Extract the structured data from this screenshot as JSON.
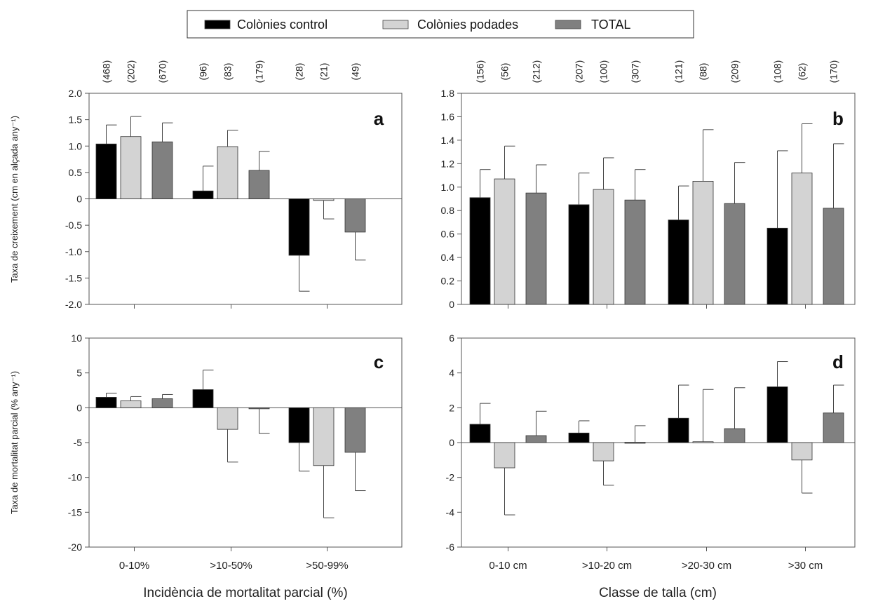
{
  "legend": {
    "items": [
      {
        "label": "Colònies control",
        "color": "#000000"
      },
      {
        "label": "Colònies podades",
        "color": "#d3d3d3"
      },
      {
        "label": "TOTAL",
        "color": "#808080"
      }
    ],
    "position": "top-center"
  },
  "colors": {
    "control": "#000000",
    "podades": "#d3d3d3",
    "total": "#808080",
    "axis": "#555555"
  },
  "chart_data": [
    {
      "panel": "a",
      "type": "bar",
      "ylabel": "Taxa de creixement (cm en alçada any⁻¹)",
      "xlabel": "",
      "ylim": [
        -2.0,
        2.0
      ],
      "yticks": [
        "2.0",
        "1.5",
        "1.0",
        "0.5",
        "0",
        "-0.5",
        "-1.0",
        "-1.5",
        "-2.0"
      ],
      "ytick_values": [
        2.0,
        1.5,
        1.0,
        0.5,
        0,
        -0.5,
        -1.0,
        -1.5,
        -2.0
      ],
      "categories": [
        "0-10%",
        ">10-50%",
        ">50-99%"
      ],
      "n_labels": [
        [
          "(468)",
          "(202)",
          "(670)"
        ],
        [
          "(96)",
          "(83)",
          "(179)"
        ],
        [
          "(28)",
          "(21)",
          "(49)"
        ]
      ],
      "series": [
        {
          "name": "Colònies control",
          "values": [
            1.04,
            0.15,
            -1.07
          ],
          "errors": [
            0.36,
            0.47,
            0.68
          ]
        },
        {
          "name": "Colònies podades",
          "values": [
            1.18,
            0.99,
            -0.03
          ],
          "errors": [
            0.38,
            0.31,
            0.35
          ]
        },
        {
          "name": "TOTAL",
          "values": [
            1.08,
            0.54,
            -0.63
          ],
          "errors": [
            0.36,
            0.36,
            0.53
          ]
        }
      ]
    },
    {
      "panel": "b",
      "type": "bar",
      "ylabel": "",
      "xlabel": "Classe de talla (cm)",
      "ylim": [
        0,
        1.8
      ],
      "yticks": [
        "1.8",
        "1.6",
        "1.4",
        "1.2",
        "1.0",
        "0.8",
        "0.6",
        "0.4",
        "0.2",
        "0"
      ],
      "ytick_values": [
        1.8,
        1.6,
        1.4,
        1.2,
        1.0,
        0.8,
        0.6,
        0.4,
        0.2,
        0
      ],
      "categories": [
        "0-10 cm",
        ">10-20 cm",
        ">20-30 cm",
        ">30 cm"
      ],
      "n_labels": [
        [
          "(156)",
          "(56)",
          "(212)"
        ],
        [
          "(207)",
          "(100)",
          "(307)"
        ],
        [
          "(121)",
          "(88)",
          "(209)"
        ],
        [
          "(108)",
          "(62)",
          "(170)"
        ]
      ],
      "series": [
        {
          "name": "Colònies control",
          "values": [
            0.91,
            0.85,
            0.72,
            0.65
          ],
          "errors": [
            0.24,
            0.27,
            0.29,
            0.66
          ]
        },
        {
          "name": "Colònies podades",
          "values": [
            1.07,
            0.98,
            1.05,
            1.12
          ],
          "errors": [
            0.28,
            0.27,
            0.44,
            0.42
          ]
        },
        {
          "name": "TOTAL",
          "values": [
            0.95,
            0.89,
            0.86,
            0.82
          ],
          "errors": [
            0.24,
            0.26,
            0.35,
            0.55
          ]
        }
      ]
    },
    {
      "panel": "c",
      "type": "bar",
      "ylabel": "Taxa de mortalitat parcial (% any⁻¹)",
      "xlabel": "Incidència de mortalitat parcial (%)",
      "ylim": [
        -20,
        10
      ],
      "yticks": [
        "10",
        "5",
        "0",
        "-5",
        "-10",
        "-15",
        "-20"
      ],
      "ytick_values": [
        10,
        5,
        0,
        -5,
        -10,
        -15,
        -20
      ],
      "categories": [
        "0-10%",
        ">10-50%",
        ">50-99%"
      ],
      "series": [
        {
          "name": "Colònies control",
          "values": [
            1.5,
            2.6,
            -5.0
          ],
          "errors": [
            0.6,
            2.8,
            4.1
          ]
        },
        {
          "name": "Colònies podades",
          "values": [
            1.0,
            -3.1,
            -8.3
          ],
          "errors": [
            0.6,
            4.7,
            7.5
          ]
        },
        {
          "name": "TOTAL",
          "values": [
            1.3,
            -0.1,
            -6.4
          ],
          "errors": [
            0.6,
            3.6,
            5.5
          ]
        }
      ]
    },
    {
      "panel": "d",
      "type": "bar",
      "ylabel": "",
      "xlabel": "",
      "ylim": [
        -6,
        6
      ],
      "yticks": [
        "6",
        "4",
        "2",
        "0",
        "-2",
        "-4",
        "-6"
      ],
      "ytick_values": [
        6,
        4,
        2,
        0,
        -2,
        -4,
        -6
      ],
      "categories": [
        "0-10 cm",
        ">10-20 cm",
        ">20-30 cm",
        ">30 cm"
      ],
      "series": [
        {
          "name": "Colònies control",
          "values": [
            1.05,
            0.55,
            1.4,
            3.2
          ],
          "errors": [
            1.2,
            0.7,
            1.9,
            1.45
          ]
        },
        {
          "name": "Colònies podades",
          "values": [
            -1.45,
            -1.05,
            0.05,
            -1.0
          ],
          "errors": [
            2.7,
            1.4,
            3.0,
            1.9
          ]
        },
        {
          "name": "TOTAL",
          "values": [
            0.4,
            0.02,
            0.8,
            1.7
          ],
          "errors": [
            1.4,
            0.95,
            2.35,
            1.6
          ]
        }
      ]
    }
  ]
}
